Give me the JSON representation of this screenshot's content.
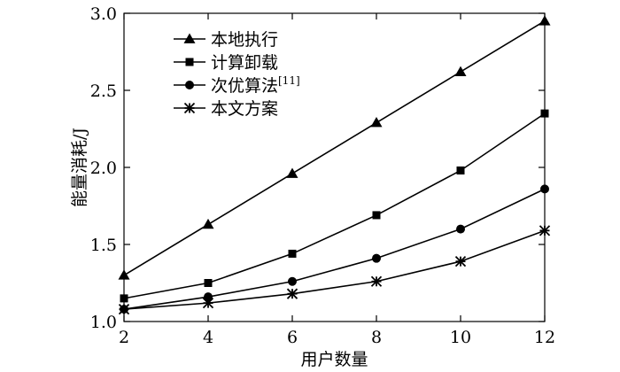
{
  "chart_data": {
    "type": "line",
    "title": "",
    "xlabel": "用户数量",
    "ylabel": "能量消耗/J",
    "x": [
      2,
      4,
      6,
      8,
      10,
      12
    ],
    "xlim": [
      2,
      12
    ],
    "ylim": [
      1.0,
      3.0
    ],
    "xticks": [
      "2",
      "4",
      "6",
      "8",
      "10",
      "12"
    ],
    "yticks": [
      "1.0",
      "1.5",
      "2.0",
      "2.5",
      "3.0"
    ],
    "grid": false,
    "legend_position": "top-left",
    "series": [
      {
        "name": "本地执行",
        "marker": "triangle",
        "values": [
          1.3,
          1.63,
          1.96,
          2.29,
          2.62,
          2.95
        ]
      },
      {
        "name": "计算卸载",
        "marker": "square",
        "values": [
          1.15,
          1.25,
          1.44,
          1.69,
          1.98,
          2.35
        ]
      },
      {
        "name": "次优算法",
        "name_suffix": "[11]",
        "marker": "circle",
        "values": [
          1.08,
          1.16,
          1.26,
          1.41,
          1.6,
          1.86
        ]
      },
      {
        "name": "本文方案",
        "marker": "asterisk",
        "values": [
          1.08,
          1.12,
          1.18,
          1.26,
          1.39,
          1.59
        ]
      }
    ]
  }
}
